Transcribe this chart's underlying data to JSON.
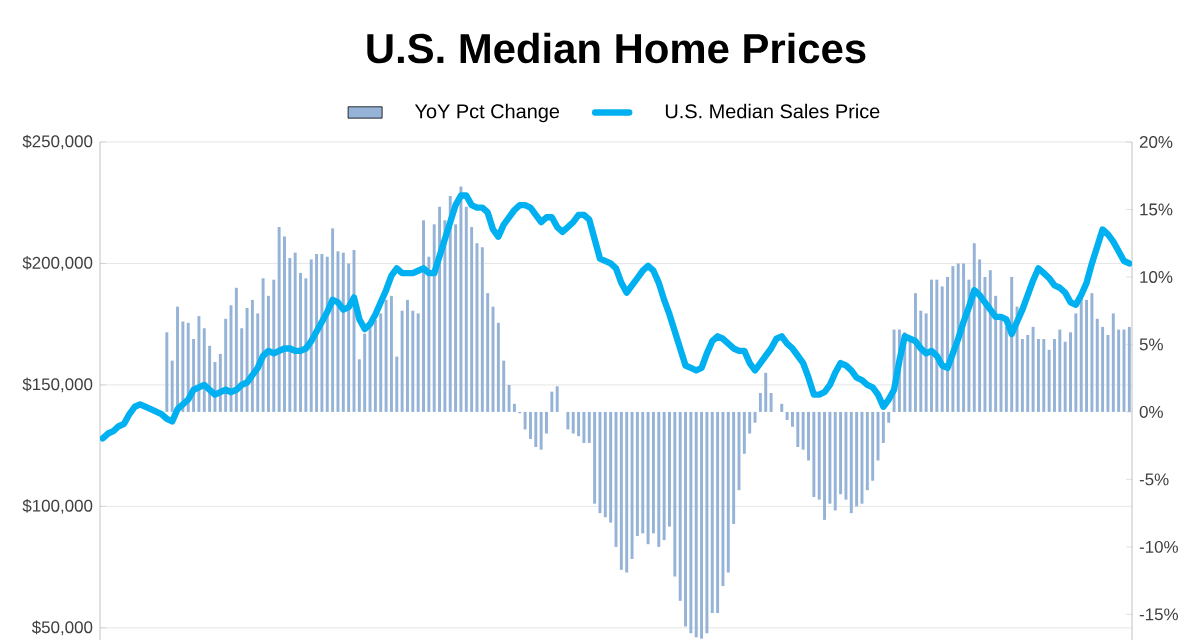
{
  "chart_data": {
    "type": "bar",
    "title": "U.S. Median Home Prices",
    "categories": [
      null,
      null,
      null,
      null,
      null,
      null,
      null,
      null,
      null,
      null,
      null,
      null,
      null,
      null,
      null,
      null,
      null,
      null,
      null,
      null,
      null,
      null,
      null,
      null,
      null,
      null,
      null,
      null,
      null,
      null,
      null,
      null,
      null,
      null,
      null,
      null,
      null,
      null,
      null,
      null,
      null,
      null,
      null,
      null,
      null,
      null,
      null,
      null,
      null,
      null,
      null,
      null,
      null,
      null,
      null,
      null,
      null,
      null,
      null,
      null,
      null,
      null,
      null,
      null,
      null,
      null,
      null,
      null,
      null,
      null,
      null,
      null,
      null,
      null,
      null,
      null,
      null,
      null,
      null,
      null,
      null,
      null,
      null,
      null,
      null,
      null,
      null,
      null,
      null,
      null,
      null,
      null,
      null,
      null,
      null,
      null,
      null,
      null,
      null,
      null,
      null,
      null,
      null,
      null,
      null,
      null,
      null,
      null,
      null,
      null,
      null,
      null,
      null,
      null,
      null,
      null,
      null,
      null,
      null,
      null,
      null,
      null,
      null,
      null,
      null,
      null,
      null,
      null,
      null,
      null,
      null,
      null,
      null,
      null,
      null,
      null,
      null,
      null,
      null,
      null,
      null,
      null,
      null,
      null,
      null,
      null,
      null,
      null,
      null,
      null,
      null,
      null,
      null,
      null,
      null,
      null,
      null,
      null,
      null,
      null,
      null,
      null,
      null,
      null,
      null,
      null,
      null,
      null,
      null,
      null,
      null,
      null,
      null,
      null,
      null,
      null,
      null,
      null,
      null,
      null,
      null,
      null,
      null,
      null,
      null,
      null,
      null,
      null,
      null,
      null,
      null,
      null,
      null
    ],
    "series": [
      {
        "name": "YoY Pct Change",
        "axis": "y2",
        "color": "#95b3d7",
        "values": [
          null,
          null,
          null,
          null,
          null,
          null,
          null,
          null,
          null,
          null,
          null,
          null,
          5.9,
          3.8,
          7.8,
          6.7,
          6.6,
          5.4,
          7.1,
          6.2,
          4.9,
          3.7,
          4.3,
          6.9,
          7.9,
          9.2,
          6.2,
          7.7,
          8.3,
          7.3,
          9.9,
          8.6,
          9.8,
          13.7,
          13.0,
          11.4,
          11.8,
          10.3,
          9.9,
          11.3,
          11.7,
          11.7,
          11.5,
          13.6,
          11.9,
          11.8,
          11.0,
          12.0,
          3.9,
          5.8,
          6.3,
          6.8,
          7.3,
          8.3,
          8.6,
          4.1,
          7.5,
          8.3,
          7.5,
          7.3,
          14.2,
          11.5,
          13.9,
          15.2,
          14.2,
          16.0,
          13.9,
          16.7,
          15.2,
          13.7,
          12.5,
          12.2,
          8.8,
          7.8,
          6.6,
          3.8,
          2.0,
          0.6,
          -0.1,
          -1.3,
          -2.0,
          -2.6,
          -2.8,
          -1.6,
          1.5,
          1.9,
          0,
          -1.3,
          -1.6,
          -1.8,
          -2.3,
          -2.3,
          -6.8,
          -7.5,
          -7.8,
          -8.2,
          -10.0,
          -11.7,
          -11.9,
          -10.9,
          -9.2,
          -9.0,
          -9.8,
          -9.0,
          -10.0,
          -9.5,
          -8.5,
          -12.2,
          -14.0,
          -15.9,
          -16.4,
          -16.7,
          -16.8,
          -16.4,
          -14.9,
          -14.9,
          -12.9,
          -11.9,
          -8.3,
          -5.8,
          -3.1,
          -1.6,
          -0.8,
          1.4,
          2.9,
          1.4,
          0,
          0.6,
          -0.6,
          -1.1,
          -2.6,
          -2.8,
          -3.6,
          -6.3,
          -6.5,
          -8.0,
          -6.8,
          -7.3,
          -6.1,
          -6.5,
          -7.5,
          -7.0,
          -6.8,
          -5.8,
          -5.1,
          -3.6,
          -2.3,
          -0.8,
          6.1,
          6.1,
          5.9,
          5.4,
          8.8,
          7.5,
          7.3,
          9.8,
          9.8,
          9.3,
          10.0,
          10.8,
          11.0,
          11.0,
          9.8,
          12.5,
          11.3,
          10.0,
          10.5,
          8.6,
          6.9,
          6.3,
          10.0,
          7.8,
          5.4,
          5.7,
          6.3,
          5.4,
          5.4,
          4.6,
          5.4,
          6.1,
          5.2,
          5.9,
          7.3,
          8.6,
          8.3,
          8.8,
          6.9,
          6.3,
          5.7,
          7.3,
          6.1,
          6.1,
          6.3
        ]
      },
      {
        "name": "U.S. Median Sales Price",
        "type": "line",
        "color": "#00b0f0",
        "values": [
          128000,
          130000,
          131000,
          133000,
          134000,
          138000,
          141000,
          142000,
          141000,
          140000,
          139000,
          138000,
          136000,
          135000,
          140000,
          142000,
          144000,
          148000,
          149000,
          150000,
          148000,
          146000,
          147000,
          148000,
          147000,
          148000,
          150000,
          151000,
          154000,
          157000,
          162000,
          164000,
          163000,
          164000,
          165000,
          165000,
          164000,
          164000,
          165000,
          168000,
          172000,
          176000,
          180000,
          185000,
          184000,
          181000,
          182000,
          186000,
          177000,
          173000,
          175000,
          179000,
          184000,
          189000,
          195000,
          198000,
          196000,
          196000,
          196000,
          197000,
          198000,
          196000,
          196000,
          203000,
          210000,
          217000,
          224000,
          228000,
          228000,
          224000,
          223000,
          223000,
          221000,
          214000,
          211000,
          216000,
          219000,
          222000,
          224000,
          224000,
          223000,
          220000,
          217000,
          219000,
          219000,
          215000,
          213000,
          215000,
          217000,
          220000,
          220000,
          218000,
          210000,
          202000,
          201000,
          200000,
          198000,
          192000,
          188000,
          191000,
          194000,
          197000,
          199000,
          197000,
          192000,
          185000,
          179000,
          172000,
          165000,
          158000,
          157000,
          156000,
          157000,
          163000,
          168000,
          170000,
          169000,
          167000,
          165000,
          164000,
          164000,
          159000,
          156000,
          159000,
          162000,
          165000,
          169000,
          170000,
          167000,
          165000,
          162000,
          159000,
          153000,
          146000,
          146000,
          147000,
          150000,
          155000,
          159000,
          158000,
          156000,
          153000,
          152000,
          150000,
          149000,
          146000,
          141000,
          144000,
          148000,
          160000,
          170000,
          169000,
          168000,
          165000,
          163000,
          164000,
          162000,
          158000,
          157000,
          163000,
          169000,
          176000,
          182000,
          189000,
          187000,
          184000,
          181000,
          178000,
          178000,
          177000,
          171000,
          176000,
          181000,
          187000,
          193000,
          198000,
          196000,
          194000,
          191000,
          190000,
          188000,
          184000,
          183000,
          187000,
          192000,
          200000,
          207000,
          214000,
          212000,
          209000,
          205000,
          201000,
          200000
        ]
      }
    ],
    "ylim": [
      45000,
      250000
    ],
    "yticks": [
      {
        "value": 50000,
        "label": "$50,000"
      },
      {
        "value": 100000,
        "label": "$100,000"
      },
      {
        "value": 150000,
        "label": "$150,000"
      },
      {
        "value": 200000,
        "label": "$200,000"
      },
      {
        "value": 250000,
        "label": "$250,000"
      }
    ],
    "y2lim": [
      -16.9,
      20
    ],
    "y2ticks": [
      {
        "value": -15,
        "label": "-15%"
      },
      {
        "value": -10,
        "label": "-10%"
      },
      {
        "value": -5,
        "label": "-5%"
      },
      {
        "value": 0,
        "label": "0%"
      },
      {
        "value": 5,
        "label": "5%"
      },
      {
        "value": 10,
        "label": "10%"
      },
      {
        "value": 15,
        "label": "15%"
      },
      {
        "value": 20,
        "label": "20%"
      }
    ],
    "grid": "y",
    "legend": "top",
    "tick_labels": "y",
    "marker": "none"
  }
}
